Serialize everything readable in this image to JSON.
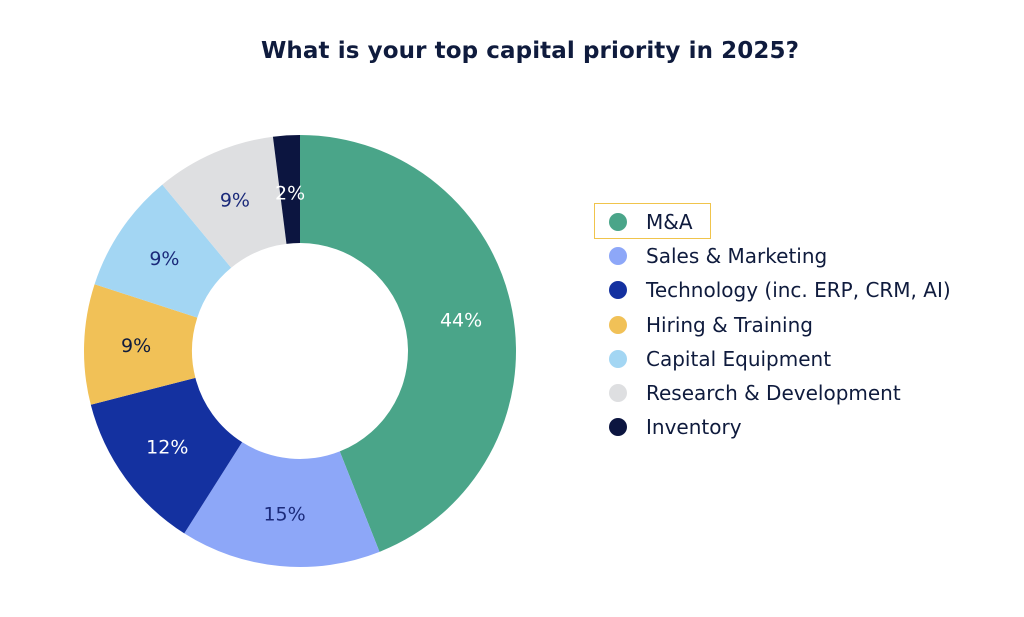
{
  "chart_data": {
    "type": "pie",
    "title": "What is your top capital priority in 2025?",
    "categories": [
      "M&A",
      "Sales & Marketing",
      "Technology (inc. ERP, CRM, AI)",
      "Hiring & Training",
      "Capital Equipment",
      "Research & Development",
      "Inventory"
    ],
    "values": [
      44,
      15,
      12,
      9,
      9,
      9,
      2
    ],
    "labels": [
      "44%",
      "15%",
      "12%",
      "9%",
      "9%",
      "9%",
      "2%"
    ],
    "colors": [
      "#4aa589",
      "#8da7f8",
      "#1431a0",
      "#f1c157",
      "#a3d6f3",
      "#dedfe1",
      "#0c1540"
    ],
    "label_colors": [
      "#ffffff",
      "#1b2a7a",
      "#ffffff",
      "#0f1b3d",
      "#1b2a7a",
      "#1b2a7a",
      "#ffffff"
    ],
    "donut": true,
    "start": "top",
    "direction": "clockwise",
    "legend": "right",
    "legend_highlighted": "M&A"
  }
}
